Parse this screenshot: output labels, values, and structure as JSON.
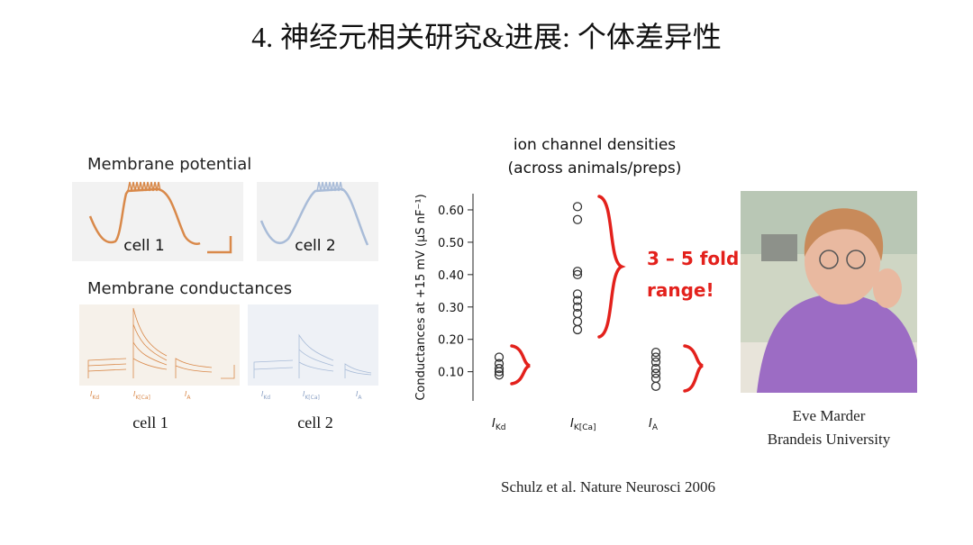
{
  "title": "4. 神经元相关研究&进展: 个体差异性",
  "left": {
    "potential_label": "Membrane potential",
    "potential_cells": [
      "cell 1",
      "cell 2"
    ],
    "conductance_label": "Membrane conductances",
    "currents": [
      "IKd",
      "IK[Ca]",
      "IA"
    ],
    "conductance_cells": [
      "cell 1",
      "cell 2"
    ]
  },
  "chart_data": {
    "type": "scatter",
    "title": "ion channel densities",
    "subtitle": "(across animals/preps)",
    "y_label": "Conductances at +15 mV (μS nF⁻¹)",
    "categories": [
      "IKd",
      "IK[Ca]",
      "IA"
    ],
    "values": [
      [
        0.145,
        0.125,
        0.11,
        0.1,
        0.09
      ],
      [
        0.61,
        0.57,
        0.41,
        0.4,
        0.34,
        0.32,
        0.3,
        0.28,
        0.255,
        0.23
      ],
      [
        0.16,
        0.145,
        0.13,
        0.11,
        0.095,
        0.08,
        0.055
      ]
    ],
    "ylim": [
      0.01,
      0.65
    ],
    "yticks": [
      {
        "value": 0.1,
        "label": "0.10"
      },
      {
        "value": 0.2,
        "label": "0.20"
      },
      {
        "value": 0.3,
        "label": "0.30"
      },
      {
        "value": 0.4,
        "label": "0.40"
      },
      {
        "value": 0.5,
        "label": "0.50"
      },
      {
        "value": 0.6,
        "label": "0.60"
      }
    ],
    "annotation": [
      "3 – 5 fold",
      "range!"
    ],
    "annotation_color": "#e3211c"
  },
  "portrait": {
    "name": "Eve Marder",
    "affiliation": "Brandeis University"
  },
  "citation": "Schulz et al. Nature Neurosci 2006"
}
